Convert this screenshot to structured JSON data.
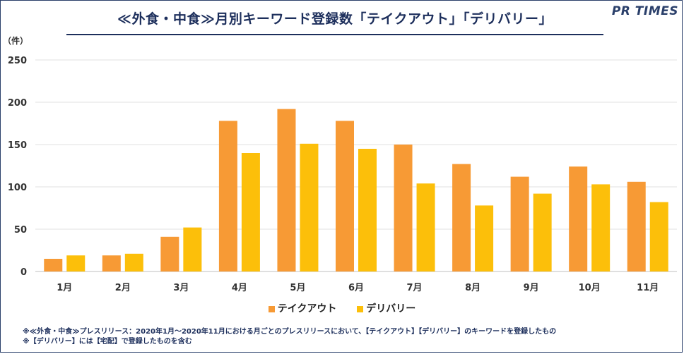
{
  "header": {
    "title": "≪外食・中食≫月別キーワード登録数「テイクアウト」「デリバリー」",
    "brand": "PR TIMES"
  },
  "chart_data": {
    "type": "bar",
    "unit_label": "（件）",
    "categories": [
      "1月",
      "2月",
      "3月",
      "4月",
      "5月",
      "6月",
      "7月",
      "8月",
      "9月",
      "10月",
      "11月"
    ],
    "series": [
      {
        "name": "テイクアウト",
        "color": "#f79a35",
        "values": [
          15,
          19,
          41,
          178,
          192,
          178,
          150,
          127,
          112,
          124,
          106
        ]
      },
      {
        "name": "デリバリー",
        "color": "#fcbf0a",
        "values": [
          19,
          21,
          52,
          140,
          151,
          145,
          104,
          78,
          92,
          103,
          82
        ]
      }
    ],
    "ylim": [
      0,
      250
    ],
    "yticks": [
      0,
      50,
      100,
      150,
      200,
      250
    ],
    "grid": true,
    "legend_position": "bottom"
  },
  "notes": {
    "line1": "※≪外食・中食≫プレスリリース：2020年1月〜2020年11月における月ごとのプレスリリースにおいて、【テイクアウト】【デリバリー】のキーワードを登録したもの",
    "line2": "※【デリバリー】には【宅配】で登録したものを含む"
  }
}
